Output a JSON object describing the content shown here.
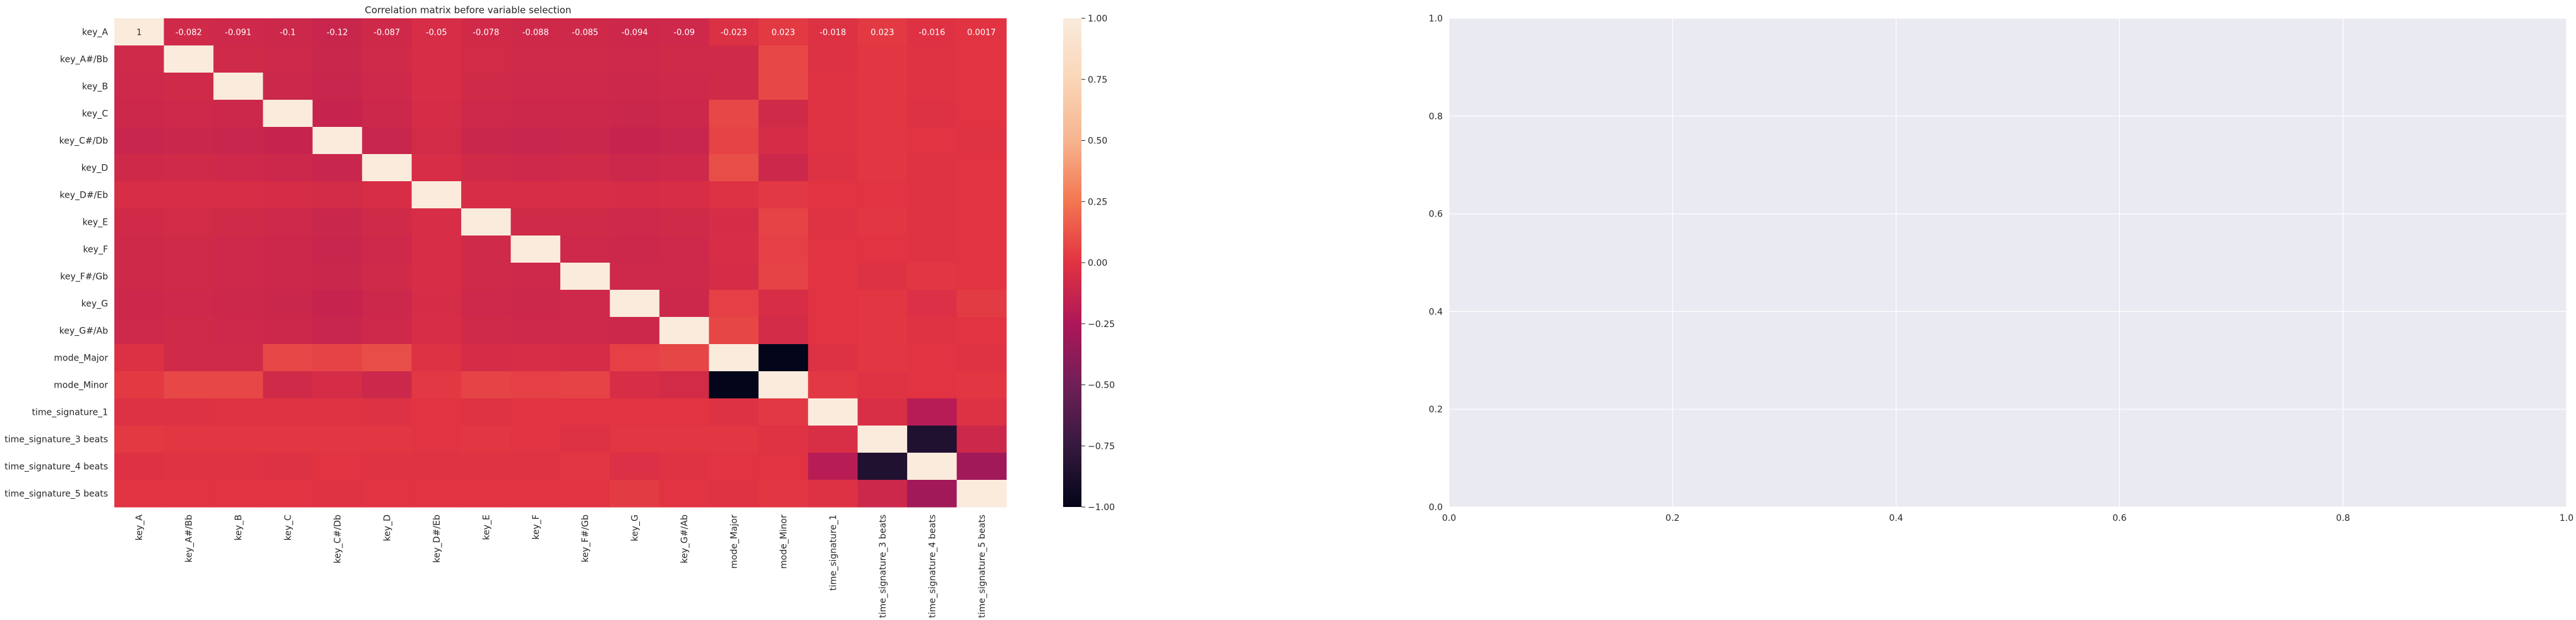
{
  "chart_data": [
    {
      "type": "heatmap",
      "title": "Correlation matrix before variable selection",
      "xlabel": "",
      "ylabel": "",
      "labels": [
        "key_A",
        "key_A#/Bb",
        "key_B",
        "key_C",
        "key_C#/Db",
        "key_D",
        "key_D#/Eb",
        "key_E",
        "key_F",
        "key_F#/Gb",
        "key_G",
        "key_G#/Ab",
        "mode_Major",
        "mode_Minor",
        "time_signature_1",
        "time_signature_3 beats",
        "time_signature_4 beats",
        "time_signature_5 beats"
      ],
      "annotated_row": "key_A",
      "matrix": [
        [
          1,
          -0.082,
          -0.091,
          -0.1,
          -0.12,
          -0.087,
          -0.05,
          -0.078,
          -0.088,
          -0.085,
          -0.094,
          -0.09,
          -0.023,
          0.023,
          -0.018,
          0.023,
          -0.016,
          0.0017
        ],
        [
          -0.082,
          1,
          -0.08,
          -0.09,
          -0.11,
          -0.08,
          -0.05,
          -0.07,
          -0.08,
          -0.08,
          -0.09,
          -0.08,
          -0.08,
          0.08,
          -0.02,
          0.01,
          -0.01,
          0.0
        ],
        [
          -0.091,
          -0.08,
          1,
          -0.1,
          -0.12,
          -0.09,
          -0.05,
          -0.08,
          -0.09,
          -0.09,
          -0.1,
          -0.09,
          -0.08,
          0.08,
          -0.01,
          0.01,
          -0.01,
          0.0
        ],
        [
          -0.1,
          -0.09,
          -0.1,
          1,
          -0.13,
          -0.1,
          -0.06,
          -0.09,
          -0.1,
          -0.1,
          -0.11,
          -0.1,
          0.08,
          -0.08,
          -0.01,
          0.01,
          -0.02,
          0.0
        ],
        [
          -0.12,
          -0.11,
          -0.12,
          -0.13,
          1,
          -0.12,
          -0.07,
          -0.11,
          -0.12,
          -0.11,
          -0.13,
          -0.12,
          0.06,
          -0.06,
          -0.01,
          0.01,
          0.0,
          -0.01
        ],
        [
          -0.087,
          -0.08,
          -0.09,
          -0.1,
          -0.12,
          1,
          -0.05,
          -0.08,
          -0.09,
          -0.08,
          -0.1,
          -0.09,
          0.1,
          -0.1,
          -0.02,
          0.01,
          -0.01,
          0.0
        ],
        [
          -0.05,
          -0.05,
          -0.05,
          -0.06,
          -0.07,
          -0.05,
          1,
          -0.05,
          -0.05,
          -0.05,
          -0.06,
          -0.05,
          -0.02,
          0.02,
          0.0,
          0.0,
          -0.01,
          0.0
        ],
        [
          -0.078,
          -0.07,
          -0.08,
          -0.09,
          -0.11,
          -0.08,
          -0.05,
          1,
          -0.08,
          -0.08,
          -0.09,
          -0.08,
          -0.06,
          0.06,
          -0.01,
          0.01,
          -0.01,
          0.0
        ],
        [
          -0.088,
          -0.08,
          -0.09,
          -0.1,
          -0.12,
          -0.09,
          -0.05,
          -0.08,
          1,
          -0.09,
          -0.1,
          -0.09,
          -0.05,
          0.05,
          0.0,
          0.0,
          -0.01,
          0.0
        ],
        [
          -0.085,
          -0.08,
          -0.09,
          -0.1,
          -0.11,
          -0.08,
          -0.05,
          -0.08,
          -0.09,
          1,
          -0.09,
          -0.09,
          -0.06,
          0.06,
          0.0,
          -0.02,
          0.01,
          0.0
        ],
        [
          -0.094,
          -0.09,
          -0.1,
          -0.11,
          -0.13,
          -0.1,
          -0.06,
          -0.09,
          -0.1,
          -0.09,
          1,
          -0.1,
          0.05,
          -0.05,
          0.0,
          0.01,
          -0.03,
          0.03
        ],
        [
          -0.09,
          -0.08,
          -0.09,
          -0.1,
          -0.12,
          -0.09,
          -0.05,
          -0.08,
          -0.09,
          -0.09,
          -0.1,
          1,
          0.07,
          -0.07,
          0.0,
          0.01,
          -0.01,
          0.0
        ],
        [
          -0.023,
          -0.08,
          -0.08,
          0.08,
          0.06,
          0.1,
          -0.02,
          -0.06,
          -0.05,
          -0.06,
          0.05,
          0.07,
          1,
          -1,
          -0.02,
          0.01,
          0.0,
          -0.01
        ],
        [
          0.023,
          0.08,
          0.08,
          -0.08,
          -0.06,
          -0.1,
          0.02,
          0.06,
          0.05,
          0.06,
          -0.05,
          -0.07,
          -1,
          1,
          0.02,
          -0.01,
          0.0,
          0.01
        ],
        [
          -0.018,
          -0.02,
          -0.01,
          -0.01,
          -0.01,
          -0.02,
          0.0,
          -0.01,
          0.0,
          0.0,
          0.0,
          0.0,
          -0.02,
          0.02,
          1,
          -0.04,
          -0.2,
          -0.02
        ],
        [
          0.023,
          0.01,
          0.01,
          0.01,
          0.01,
          0.01,
          0.0,
          0.01,
          0.0,
          -0.02,
          0.01,
          0.01,
          0.01,
          -0.01,
          -0.04,
          1,
          -0.85,
          -0.1
        ],
        [
          -0.016,
          -0.01,
          -0.01,
          -0.02,
          0.0,
          -0.01,
          -0.01,
          -0.01,
          -0.01,
          0.01,
          -0.03,
          -0.01,
          0.0,
          0.0,
          -0.2,
          -0.85,
          1,
          -0.3
        ],
        [
          0.0017,
          0.0,
          0.0,
          0.0,
          -0.01,
          0.0,
          0.0,
          0.0,
          0.0,
          0.0,
          0.03,
          0.0,
          -0.01,
          0.01,
          -0.02,
          -0.1,
          -0.3,
          1
        ]
      ],
      "colorbar": {
        "range": [
          -1.0,
          1.0
        ],
        "ticks": [
          "1.00",
          "0.75",
          "0.50",
          "0.25",
          "0.00",
          "−0.25",
          "−0.50",
          "−0.75",
          "−1.00"
        ],
        "tick_values": [
          1.0,
          0.75,
          0.5,
          0.25,
          0.0,
          -0.25,
          -0.5,
          -0.75,
          -1.0
        ]
      }
    },
    {
      "type": "scatter",
      "title": "",
      "xlabel": "",
      "ylabel": "",
      "xlim": [
        0.0,
        1.0
      ],
      "ylim": [
        0.0,
        1.0
      ],
      "x_ticks": [
        "0.0",
        "0.2",
        "0.4",
        "0.6",
        "0.8",
        "1.0"
      ],
      "y_ticks": [
        "0.0",
        "0.2",
        "0.4",
        "0.6",
        "0.8",
        "1.0"
      ],
      "grid": true,
      "background": "#eaeaf2",
      "series": []
    }
  ]
}
